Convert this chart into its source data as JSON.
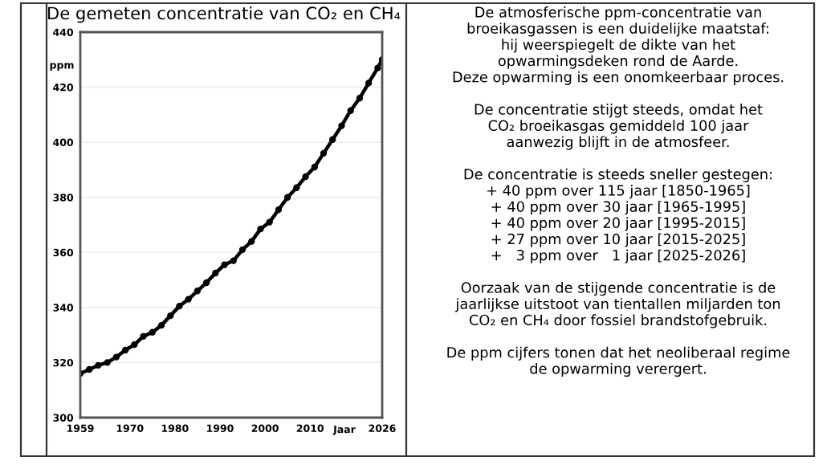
{
  "chart_data": {
    "type": "line",
    "title": "De gemeten concentratie van CO₂ en CH₄",
    "xlabel": "Jaar",
    "ylabel": "ppm",
    "x": [
      1959,
      1961,
      1963,
      1965,
      1967,
      1969,
      1971,
      1973,
      1975,
      1977,
      1979,
      1981,
      1983,
      1985,
      1987,
      1989,
      1991,
      1993,
      1995,
      1997,
      1999,
      2001,
      2003,
      2005,
      2007,
      2009,
      2011,
      2013,
      2015,
      2017,
      2019,
      2021,
      2023,
      2025,
      2026
    ],
    "series": [
      {
        "color": "#000000",
        "values": [
          316,
          317.5,
          319,
          320,
          322,
          324.5,
          326.5,
          329.5,
          331,
          333.5,
          337,
          340.5,
          343,
          346,
          349,
          352.5,
          355.5,
          357,
          361,
          364,
          368.5,
          371,
          375.5,
          380,
          383.5,
          387.5,
          391,
          396,
          401,
          406,
          411.5,
          416,
          421.5,
          427,
          430
        ]
      }
    ],
    "xlim": [
      1959,
      2026
    ],
    "xticks": [
      1959,
      1970,
      1980,
      1990,
      2000,
      2010,
      2026
    ],
    "ylim": [
      300,
      440
    ],
    "yticks": [
      300,
      320,
      340,
      360,
      380,
      400,
      420,
      440
    ],
    "grid": "y",
    "marker": "circle",
    "line_style": "solid",
    "annotations": [
      "De atmosferische ppm-concentratie van\nbroeikasgassen is een duidelijke maatstaf:\nhij weerspiegelt de dikte van het\nopwarmingsdeken rond de Aarde.\nDeze opwarming is een onomkeerbaar proces.\n\nDe concentratie stijgt steeds, omdat het\nCO₂ broeikasgas gemiddeld 100 jaar\naanwezig blijft in de atmosfeer.\n\nDe concentratie is steeds sneller gestegen:\n+ 40 ppm over 115 jaar [1850-1965]\n+ 40 ppm over 30 jaar [1965-1995]\n+ 40 ppm over 20 jaar [1995-2015]\n+ 27 ppm over 10 jaar [2015-2025]\n+   3 ppm over   1 jaar [2025-2026]\n\nOorzaak van de stijgende concentratie is de\njaarlijkse uitstoot van tientallen miljarden ton\nCO₂ en CH₄ door fossiel brandstofgebruik.\n\nDe ppm cijfers tonen dat het neoliberaal regime\nde opwarming verergert."
    ]
  }
}
